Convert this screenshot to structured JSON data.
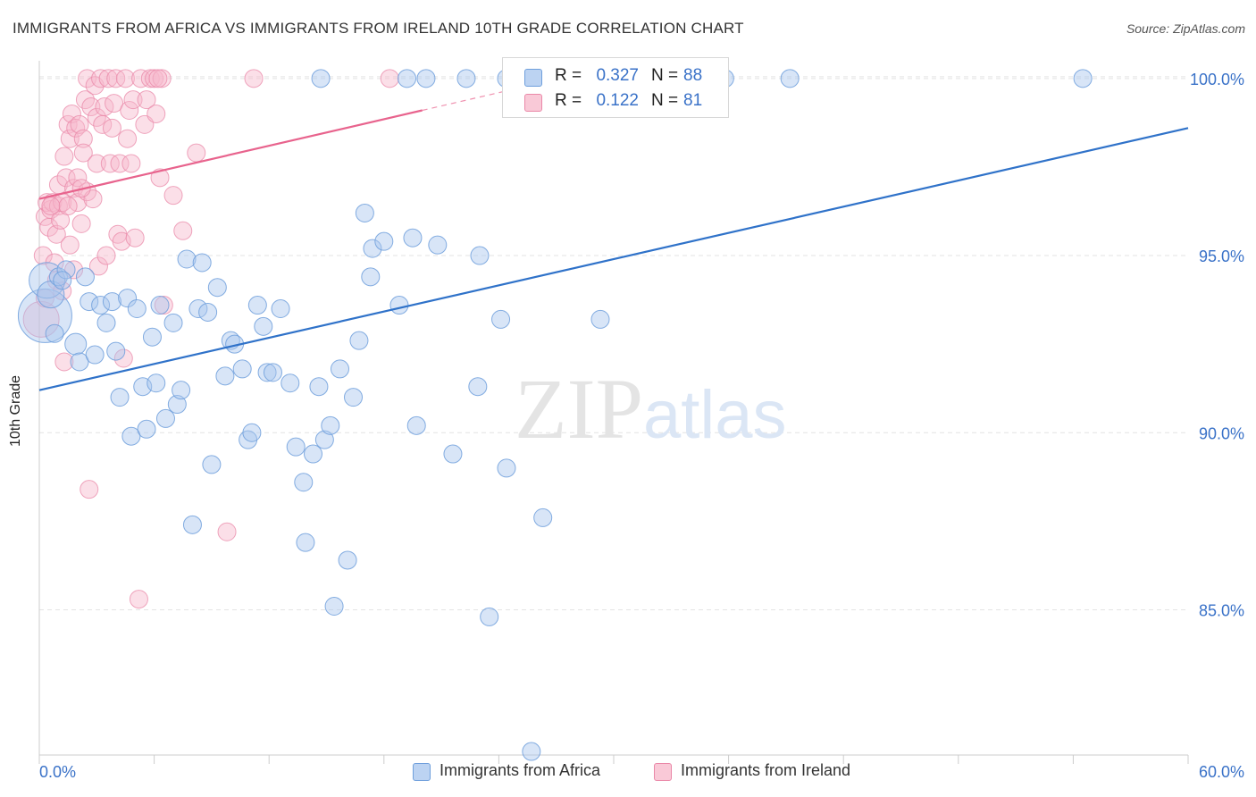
{
  "header": {
    "title": "IMMIGRANTS FROM AFRICA VS IMMIGRANTS FROM IRELAND 10TH GRADE CORRELATION CHART",
    "source": "Source: ZipAtlas.com"
  },
  "watermark": {
    "zip": "ZIP",
    "atlas": "atlas"
  },
  "legend_top": {
    "rows": [
      {
        "r_label": "R =",
        "r_value": "0.327",
        "n_label": "N =",
        "n_value": "88"
      },
      {
        "r_label": "R =",
        "r_value": "0.122",
        "n_label": "N =",
        "n_value": "81"
      }
    ]
  },
  "legend_bottom": {
    "items": [
      {
        "label": "Immigrants from Africa"
      },
      {
        "label": "Immigrants from Ireland"
      }
    ]
  },
  "colors": {
    "africa_fill": "#a9c6ee",
    "africa_stroke": "#6f9fdc",
    "africa_line": "#2f72c9",
    "ireland_fill": "#f6b8cb",
    "ireland_stroke": "#ea88a8",
    "ireland_line": "#e8638d",
    "tick_label": "#3a72c8",
    "grid": "#e3e3e3"
  },
  "chart_data": {
    "type": "scatter",
    "title": "IMMIGRANTS FROM AFRICA VS IMMIGRANTS FROM IRELAND 10TH GRADE CORRELATION CHART",
    "xlabel": "",
    "ylabel": "10th Grade",
    "xlim": [
      0,
      60
    ],
    "ylim": [
      80.9,
      100.5
    ],
    "x_tick_labels": [
      "0.0%",
      "60.0%"
    ],
    "y_ticks": [
      85,
      90,
      95,
      100
    ],
    "y_tick_labels": [
      "85.0%",
      "90.0%",
      "95.0%",
      "100.0%"
    ],
    "grid": true,
    "legend": "top-center and bottom",
    "series": [
      {
        "name": "Immigrants from Africa",
        "r": 0.327,
        "n": 88,
        "trend": {
          "x": [
            0,
            60
          ],
          "y": [
            91.2,
            98.6
          ]
        },
        "points": [
          {
            "x": 0.3,
            "y": 93.3,
            "s": 3
          },
          {
            "x": 0.4,
            "y": 94.3,
            "s": 2
          },
          {
            "x": 0.6,
            "y": 93.9,
            "s": 1.5
          },
          {
            "x": 1.0,
            "y": 94.4,
            "s": 1
          },
          {
            "x": 1.4,
            "y": 94.6,
            "s": 1
          },
          {
            "x": 1.9,
            "y": 92.5,
            "s": 1.2
          },
          {
            "x": 2.1,
            "y": 92.0,
            "s": 1
          },
          {
            "x": 2.4,
            "y": 94.4,
            "s": 1
          },
          {
            "x": 2.6,
            "y": 93.7,
            "s": 1
          },
          {
            "x": 2.9,
            "y": 92.2,
            "s": 1
          },
          {
            "x": 3.2,
            "y": 93.6,
            "s": 1
          },
          {
            "x": 3.5,
            "y": 93.1,
            "s": 1
          },
          {
            "x": 3.8,
            "y": 93.7,
            "s": 1
          },
          {
            "x": 4.0,
            "y": 92.3,
            "s": 1
          },
          {
            "x": 4.2,
            "y": 91.0,
            "s": 1
          },
          {
            "x": 4.6,
            "y": 93.8,
            "s": 1
          },
          {
            "x": 4.8,
            "y": 89.9,
            "s": 1
          },
          {
            "x": 5.1,
            "y": 93.5,
            "s": 1
          },
          {
            "x": 5.4,
            "y": 91.3,
            "s": 1
          },
          {
            "x": 5.6,
            "y": 90.1,
            "s": 1
          },
          {
            "x": 5.9,
            "y": 92.7,
            "s": 1
          },
          {
            "x": 6.1,
            "y": 91.4,
            "s": 1
          },
          {
            "x": 6.3,
            "y": 93.6,
            "s": 1
          },
          {
            "x": 6.6,
            "y": 90.4,
            "s": 1
          },
          {
            "x": 7.0,
            "y": 93.1,
            "s": 1
          },
          {
            "x": 7.2,
            "y": 90.8,
            "s": 1
          },
          {
            "x": 7.4,
            "y": 91.2,
            "s": 1
          },
          {
            "x": 7.7,
            "y": 94.9,
            "s": 1
          },
          {
            "x": 8.0,
            "y": 87.4,
            "s": 1
          },
          {
            "x": 8.3,
            "y": 93.5,
            "s": 1
          },
          {
            "x": 8.5,
            "y": 94.8,
            "s": 1
          },
          {
            "x": 8.8,
            "y": 93.4,
            "s": 1
          },
          {
            "x": 9.0,
            "y": 89.1,
            "s": 1
          },
          {
            "x": 9.3,
            "y": 94.1,
            "s": 1
          },
          {
            "x": 9.7,
            "y": 91.6,
            "s": 1
          },
          {
            "x": 10.0,
            "y": 92.6,
            "s": 1
          },
          {
            "x": 10.2,
            "y": 92.5,
            "s": 1
          },
          {
            "x": 10.6,
            "y": 91.8,
            "s": 1
          },
          {
            "x": 10.9,
            "y": 89.8,
            "s": 1
          },
          {
            "x": 11.1,
            "y": 90.0,
            "s": 1
          },
          {
            "x": 11.4,
            "y": 93.6,
            "s": 1
          },
          {
            "x": 11.7,
            "y": 93.0,
            "s": 1
          },
          {
            "x": 11.9,
            "y": 91.7,
            "s": 1
          },
          {
            "x": 12.2,
            "y": 91.7,
            "s": 1
          },
          {
            "x": 12.6,
            "y": 93.5,
            "s": 1
          },
          {
            "x": 13.1,
            "y": 91.4,
            "s": 1
          },
          {
            "x": 13.4,
            "y": 89.6,
            "s": 1
          },
          {
            "x": 13.8,
            "y": 88.6,
            "s": 1
          },
          {
            "x": 13.9,
            "y": 86.9,
            "s": 1
          },
          {
            "x": 14.3,
            "y": 89.4,
            "s": 1
          },
          {
            "x": 14.6,
            "y": 91.3,
            "s": 1
          },
          {
            "x": 14.9,
            "y": 89.8,
            "s": 1
          },
          {
            "x": 15.2,
            "y": 90.2,
            "s": 1
          },
          {
            "x": 15.4,
            "y": 85.1,
            "s": 1
          },
          {
            "x": 15.7,
            "y": 91.8,
            "s": 1
          },
          {
            "x": 16.1,
            "y": 86.4,
            "s": 1
          },
          {
            "x": 16.4,
            "y": 91.0,
            "s": 1
          },
          {
            "x": 16.7,
            "y": 92.6,
            "s": 1
          },
          {
            "x": 17.0,
            "y": 96.2,
            "s": 1
          },
          {
            "x": 17.3,
            "y": 94.4,
            "s": 1
          },
          {
            "x": 17.4,
            "y": 95.2,
            "s": 1
          },
          {
            "x": 18.0,
            "y": 95.4,
            "s": 1
          },
          {
            "x": 18.8,
            "y": 93.6,
            "s": 1
          },
          {
            "x": 19.5,
            "y": 95.5,
            "s": 1
          },
          {
            "x": 19.7,
            "y": 90.2,
            "s": 1
          },
          {
            "x": 20.8,
            "y": 95.3,
            "s": 1
          },
          {
            "x": 21.6,
            "y": 89.4,
            "s": 1
          },
          {
            "x": 22.9,
            "y": 91.3,
            "s": 1
          },
          {
            "x": 23.0,
            "y": 95.0,
            "s": 1
          },
          {
            "x": 23.5,
            "y": 84.8,
            "s": 1
          },
          {
            "x": 24.1,
            "y": 93.2,
            "s": 1
          },
          {
            "x": 24.4,
            "y": 89.0,
            "s": 1
          },
          {
            "x": 26.3,
            "y": 87.6,
            "s": 1
          },
          {
            "x": 25.7,
            "y": 81.0,
            "s": 1
          },
          {
            "x": 29.3,
            "y": 93.2,
            "s": 1
          },
          {
            "x": 14.7,
            "y": 100.0,
            "s": 1
          },
          {
            "x": 19.2,
            "y": 100.0,
            "s": 1
          },
          {
            "x": 20.2,
            "y": 100.0,
            "s": 1
          },
          {
            "x": 22.3,
            "y": 100.0,
            "s": 1
          },
          {
            "x": 24.4,
            "y": 100.0,
            "s": 1
          },
          {
            "x": 26.2,
            "y": 100.0,
            "s": 1
          },
          {
            "x": 30.6,
            "y": 100.0,
            "s": 1
          },
          {
            "x": 33.0,
            "y": 100.0,
            "s": 1
          },
          {
            "x": 35.8,
            "y": 100.0,
            "s": 1
          },
          {
            "x": 39.2,
            "y": 100.0,
            "s": 1
          },
          {
            "x": 54.5,
            "y": 100.0,
            "s": 1
          },
          {
            "x": 1.2,
            "y": 94.3,
            "s": 1
          },
          {
            "x": 0.8,
            "y": 92.8,
            "s": 1
          }
        ]
      },
      {
        "name": "Immigrants from Ireland",
        "r": 0.122,
        "n": 81,
        "trend": {
          "x": [
            0,
            20
          ],
          "y": [
            96.6,
            99.1
          ]
        },
        "points": [
          {
            "x": 0.1,
            "y": 93.2,
            "s": 2
          },
          {
            "x": 0.2,
            "y": 95.0,
            "s": 1
          },
          {
            "x": 0.3,
            "y": 93.8,
            "s": 1
          },
          {
            "x": 0.3,
            "y": 96.1,
            "s": 1
          },
          {
            "x": 0.4,
            "y": 96.5,
            "s": 1
          },
          {
            "x": 0.5,
            "y": 95.8,
            "s": 1
          },
          {
            "x": 0.6,
            "y": 96.3,
            "s": 1
          },
          {
            "x": 0.7,
            "y": 96.5,
            "s": 1
          },
          {
            "x": 0.8,
            "y": 94.8,
            "s": 1
          },
          {
            "x": 0.9,
            "y": 95.6,
            "s": 1
          },
          {
            "x": 0.9,
            "y": 94.3,
            "s": 1
          },
          {
            "x": 1.0,
            "y": 96.4,
            "s": 1
          },
          {
            "x": 1.0,
            "y": 97.0,
            "s": 1
          },
          {
            "x": 1.1,
            "y": 96.0,
            "s": 1
          },
          {
            "x": 1.2,
            "y": 96.5,
            "s": 1
          },
          {
            "x": 1.2,
            "y": 94.0,
            "s": 1
          },
          {
            "x": 1.3,
            "y": 97.8,
            "s": 1
          },
          {
            "x": 1.3,
            "y": 92.0,
            "s": 1
          },
          {
            "x": 1.4,
            "y": 97.2,
            "s": 1
          },
          {
            "x": 1.5,
            "y": 98.7,
            "s": 1
          },
          {
            "x": 1.6,
            "y": 98.3,
            "s": 1
          },
          {
            "x": 1.6,
            "y": 95.3,
            "s": 1
          },
          {
            "x": 1.7,
            "y": 99.0,
            "s": 1
          },
          {
            "x": 1.8,
            "y": 96.9,
            "s": 1
          },
          {
            "x": 1.8,
            "y": 94.6,
            "s": 1
          },
          {
            "x": 1.9,
            "y": 98.6,
            "s": 1
          },
          {
            "x": 2.0,
            "y": 97.2,
            "s": 1
          },
          {
            "x": 2.0,
            "y": 96.5,
            "s": 1
          },
          {
            "x": 2.1,
            "y": 98.7,
            "s": 1
          },
          {
            "x": 2.2,
            "y": 95.9,
            "s": 1
          },
          {
            "x": 2.3,
            "y": 98.3,
            "s": 1
          },
          {
            "x": 2.3,
            "y": 97.9,
            "s": 1
          },
          {
            "x": 2.4,
            "y": 99.4,
            "s": 1
          },
          {
            "x": 2.5,
            "y": 100.0,
            "s": 1
          },
          {
            "x": 2.5,
            "y": 96.8,
            "s": 1
          },
          {
            "x": 2.6,
            "y": 88.4,
            "s": 1
          },
          {
            "x": 2.7,
            "y": 99.2,
            "s": 1
          },
          {
            "x": 2.8,
            "y": 96.6,
            "s": 1
          },
          {
            "x": 2.9,
            "y": 99.8,
            "s": 1
          },
          {
            "x": 3.0,
            "y": 98.9,
            "s": 1
          },
          {
            "x": 3.0,
            "y": 97.6,
            "s": 1
          },
          {
            "x": 3.1,
            "y": 94.7,
            "s": 1
          },
          {
            "x": 3.2,
            "y": 100.0,
            "s": 1
          },
          {
            "x": 3.3,
            "y": 98.7,
            "s": 1
          },
          {
            "x": 3.4,
            "y": 99.2,
            "s": 1
          },
          {
            "x": 3.5,
            "y": 95.0,
            "s": 1
          },
          {
            "x": 3.6,
            "y": 100.0,
            "s": 1
          },
          {
            "x": 3.7,
            "y": 97.6,
            "s": 1
          },
          {
            "x": 3.8,
            "y": 98.6,
            "s": 1
          },
          {
            "x": 3.9,
            "y": 99.3,
            "s": 1
          },
          {
            "x": 4.0,
            "y": 100.0,
            "s": 1
          },
          {
            "x": 4.1,
            "y": 95.6,
            "s": 1
          },
          {
            "x": 4.2,
            "y": 97.6,
            "s": 1
          },
          {
            "x": 4.3,
            "y": 95.4,
            "s": 1
          },
          {
            "x": 4.4,
            "y": 92.1,
            "s": 1
          },
          {
            "x": 4.5,
            "y": 100.0,
            "s": 1
          },
          {
            "x": 4.6,
            "y": 98.3,
            "s": 1
          },
          {
            "x": 4.7,
            "y": 99.1,
            "s": 1
          },
          {
            "x": 4.8,
            "y": 97.6,
            "s": 1
          },
          {
            "x": 4.9,
            "y": 99.4,
            "s": 1
          },
          {
            "x": 5.0,
            "y": 95.5,
            "s": 1
          },
          {
            "x": 5.2,
            "y": 85.3,
            "s": 1
          },
          {
            "x": 5.3,
            "y": 100.0,
            "s": 1
          },
          {
            "x": 5.5,
            "y": 98.7,
            "s": 1
          },
          {
            "x": 5.6,
            "y": 99.4,
            "s": 1
          },
          {
            "x": 5.8,
            "y": 100.0,
            "s": 1
          },
          {
            "x": 6.0,
            "y": 100.0,
            "s": 1
          },
          {
            "x": 6.1,
            "y": 99.0,
            "s": 1
          },
          {
            "x": 6.3,
            "y": 97.2,
            "s": 1
          },
          {
            "x": 6.4,
            "y": 100.0,
            "s": 1
          },
          {
            "x": 6.5,
            "y": 93.6,
            "s": 1
          },
          {
            "x": 7.0,
            "y": 96.7,
            "s": 1
          },
          {
            "x": 7.5,
            "y": 95.7,
            "s": 1
          },
          {
            "x": 8.2,
            "y": 97.9,
            "s": 1
          },
          {
            "x": 9.8,
            "y": 87.2,
            "s": 1
          },
          {
            "x": 11.2,
            "y": 100.0,
            "s": 1
          },
          {
            "x": 18.3,
            "y": 100.0,
            "s": 1
          },
          {
            "x": 6.2,
            "y": 100.0,
            "s": 1
          },
          {
            "x": 1.5,
            "y": 96.4,
            "s": 1
          },
          {
            "x": 0.6,
            "y": 96.4,
            "s": 1
          },
          {
            "x": 2.2,
            "y": 96.9,
            "s": 1
          }
        ]
      }
    ]
  }
}
